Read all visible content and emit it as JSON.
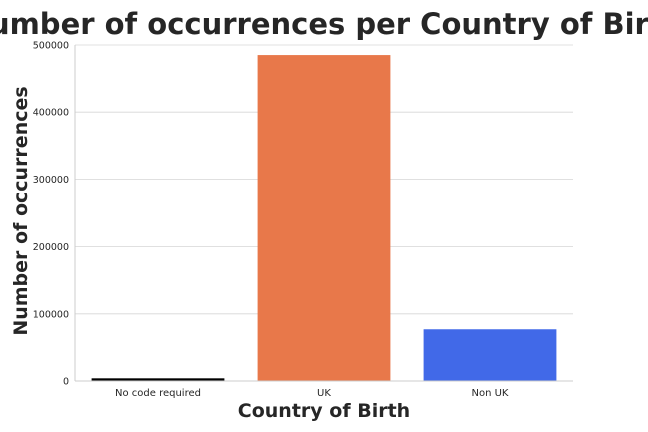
{
  "chart_data": {
    "type": "bar",
    "title": "Number of occurrences per Country of Birth",
    "xlabel": "Country of Birth",
    "ylabel": "Number of occurrences",
    "categories": [
      "No code required",
      "UK",
      "Non UK"
    ],
    "values": [
      4000,
      485000,
      77000
    ],
    "colors": [
      "#000000",
      "#e8784a",
      "#4169e8"
    ],
    "ylim": [
      0,
      500000
    ],
    "yticks": [
      0,
      100000,
      200000,
      300000,
      400000,
      500000
    ],
    "ytick_labels": [
      "0",
      "100000",
      "200000",
      "300000",
      "400000",
      "500000"
    ],
    "grid": true,
    "grid_axis": "y"
  }
}
